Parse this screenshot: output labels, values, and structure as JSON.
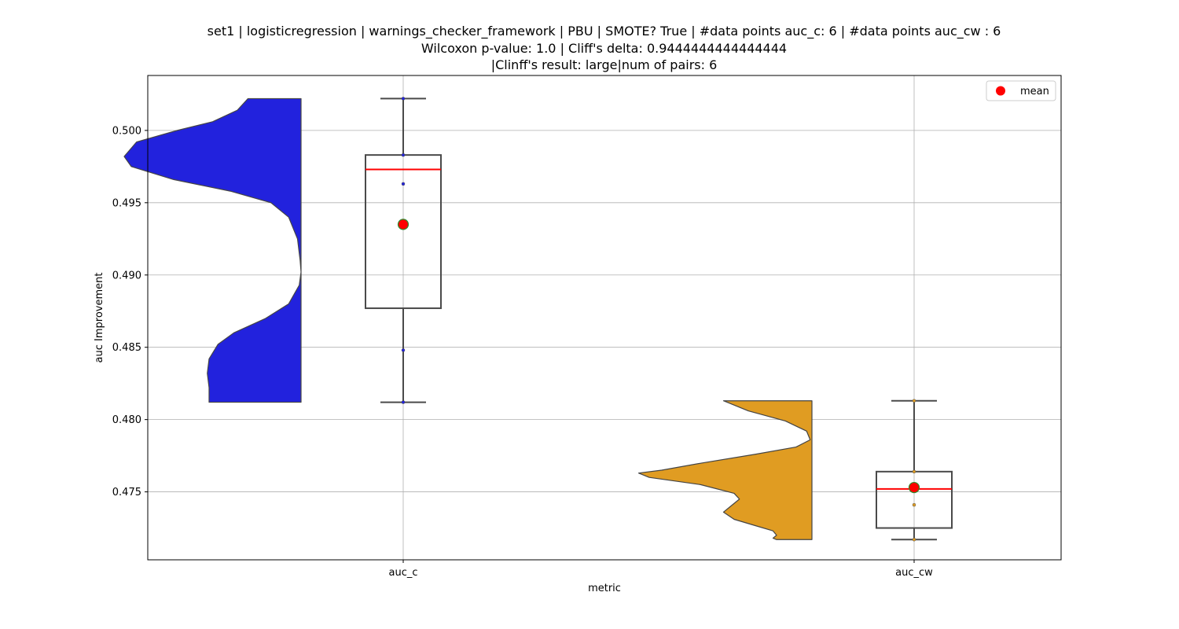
{
  "chart_data": {
    "type": "raincloud",
    "title_lines": [
      "set1 | logisticregression | warnings_checker_framework | PBU | SMOTE? True | #data points auc_c: 6 | #data points auc_cw : 6",
      "Wilcoxon p-value: 1.0 | Cliff's delta: 0.9444444444444444",
      "|Clinff's result: large|num of pairs: 6"
    ],
    "xlabel": "metric",
    "ylabel": "auc Improvement",
    "categories": [
      "auc_c",
      "auc_cw"
    ],
    "ylim": [
      0.4703,
      0.5038
    ],
    "yticks": [
      0.48,
      0.485,
      0.49,
      0.495,
      0.5,
      0.475
    ],
    "ytick_labels": [
      "0.480",
      "0.485",
      "0.490",
      "0.495",
      "0.500",
      "0.475"
    ],
    "grid": true,
    "legend": {
      "position": "top-right",
      "entries": [
        {
          "label": "mean",
          "color": "#ff0000"
        }
      ]
    },
    "series": [
      {
        "category": "auc_c",
        "color": "#2222dd",
        "box": {
          "min": 0.4812,
          "q1": 0.4877,
          "median": 0.4973,
          "q3": 0.4983,
          "max": 0.5022
        },
        "mean": 0.4935,
        "points": [
          0.5022,
          0.4983,
          0.4963,
          0.4848,
          0.4812
        ],
        "density": [
          [
            0.5022,
            0.3
          ],
          [
            0.5014,
            0.36
          ],
          [
            0.5006,
            0.5
          ],
          [
            0.5,
            0.7
          ],
          [
            0.4992,
            0.93
          ],
          [
            0.4982,
            1.0
          ],
          [
            0.4975,
            0.96
          ],
          [
            0.4966,
            0.72
          ],
          [
            0.4958,
            0.4
          ],
          [
            0.495,
            0.17
          ],
          [
            0.494,
            0.07
          ],
          [
            0.4925,
            0.02
          ],
          [
            0.491,
            0.005
          ],
          [
            0.4902,
            0.0
          ],
          [
            0.4893,
            0.01
          ],
          [
            0.488,
            0.07
          ],
          [
            0.487,
            0.2
          ],
          [
            0.486,
            0.38
          ],
          [
            0.4852,
            0.47
          ],
          [
            0.4842,
            0.52
          ],
          [
            0.4832,
            0.53
          ],
          [
            0.4822,
            0.52
          ],
          [
            0.4812,
            0.52
          ]
        ]
      },
      {
        "category": "auc_cw",
        "color": "#e09c22",
        "box": {
          "min": 0.4717,
          "q1": 0.4725,
          "median": 0.4752,
          "q3": 0.4764,
          "max": 0.4813
        },
        "mean": 0.4753,
        "points": [
          0.4813,
          0.4764,
          0.4741,
          0.4717
        ],
        "density": [
          [
            0.4813,
            0.5
          ],
          [
            0.4806,
            0.36
          ],
          [
            0.4799,
            0.15
          ],
          [
            0.4792,
            0.03
          ],
          [
            0.4786,
            0.01
          ],
          [
            0.4781,
            0.09
          ],
          [
            0.4776,
            0.32
          ],
          [
            0.477,
            0.62
          ],
          [
            0.4765,
            0.85
          ],
          [
            0.4763,
            0.98
          ],
          [
            0.476,
            0.92
          ],
          [
            0.4755,
            0.63
          ],
          [
            0.4749,
            0.44
          ],
          [
            0.4745,
            0.41
          ],
          [
            0.4741,
            0.45
          ],
          [
            0.4736,
            0.5
          ],
          [
            0.4731,
            0.44
          ],
          [
            0.4727,
            0.33
          ],
          [
            0.4723,
            0.22
          ],
          [
            0.472,
            0.2
          ],
          [
            0.4718,
            0.22
          ],
          [
            0.4717,
            0.2
          ]
        ]
      }
    ]
  }
}
